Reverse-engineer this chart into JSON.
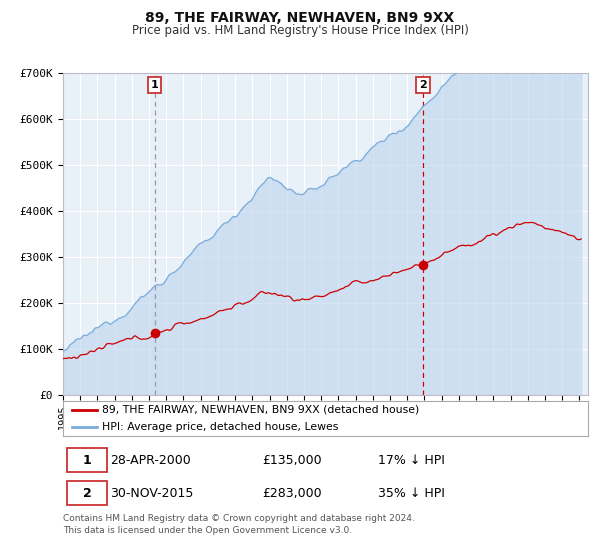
{
  "title": "89, THE FAIRWAY, NEWHAVEN, BN9 9XX",
  "subtitle": "Price paid vs. HM Land Registry's House Price Index (HPI)",
  "legend_line1": "89, THE FAIRWAY, NEWHAVEN, BN9 9XX (detached house)",
  "legend_line2": "HPI: Average price, detached house, Lewes",
  "annotation1_label": "1",
  "annotation1_date": "28-APR-2000",
  "annotation1_price": 135000,
  "annotation1_year": 2000.32,
  "annotation2_label": "2",
  "annotation2_date": "30-NOV-2015",
  "annotation2_price": 283000,
  "annotation2_year": 2015.92,
  "ylabel_ticks": [
    "£0",
    "£100K",
    "£200K",
    "£300K",
    "£400K",
    "£500K",
    "£600K",
    "£700K"
  ],
  "ytick_vals": [
    0,
    100000,
    200000,
    300000,
    400000,
    500000,
    600000,
    700000
  ],
  "xmin": 1995.0,
  "xmax": 2025.5,
  "ymin": 0,
  "ymax": 700000,
  "red_color": "#cc0000",
  "blue_color": "#7aacdc",
  "blue_fill_color": "#c5d9f0",
  "bg_color": "#e8f0f8",
  "grid_color": "#ffffff",
  "dashed_line1_color": "#9999aa",
  "dashed_line2_color": "#cc0000",
  "border_color": "#cc3333",
  "footnote": "Contains HM Land Registry data © Crown copyright and database right 2024.\nThis data is licensed under the Open Government Licence v3.0.",
  "table_row1": [
    "1",
    "28-APR-2000",
    "£135,000",
    "17% ↓ HPI"
  ],
  "table_row2": [
    "2",
    "30-NOV-2015",
    "£283,000",
    "35% ↓ HPI"
  ]
}
